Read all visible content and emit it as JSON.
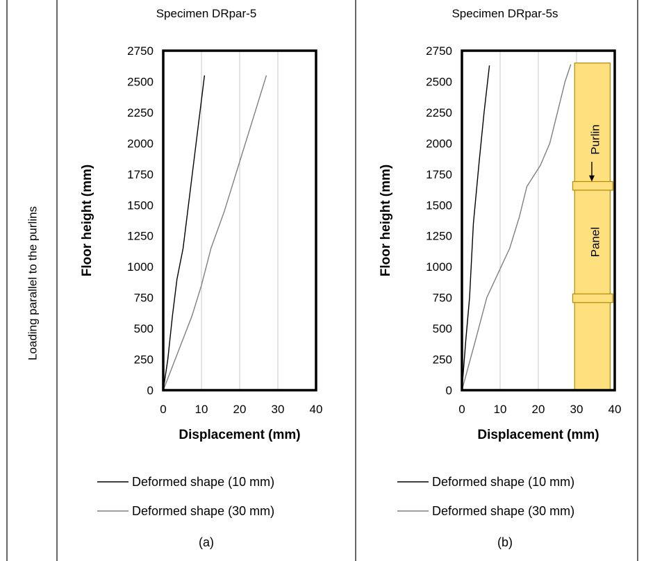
{
  "row_label": "Loading parallel to the purlins",
  "colors": {
    "series_10mm": "#000000",
    "series_30mm": "#7f7f7f",
    "grid": "#c8c8c8",
    "panel_fill": "#ffe07f",
    "panel_stroke": "#b38a00"
  },
  "chart_data": [
    {
      "type": "line",
      "title": "Specimen DRpar-5",
      "sublabel": "(a)",
      "xlabel": "Displacement (mm)",
      "ylabel": "Floor height (mm)",
      "xlim": [
        0,
        40
      ],
      "ylim": [
        0,
        2750
      ],
      "xticks": [
        "0",
        "10",
        "20",
        "30",
        "40"
      ],
      "yticks": [
        "0",
        "250",
        "500",
        "750",
        "1000",
        "1250",
        "1500",
        "1750",
        "2000",
        "2250",
        "2500",
        "2750"
      ],
      "grid": "vertical",
      "legend_position": "bottom",
      "series": [
        {
          "name": "Deformed shape (10 mm)",
          "points": [
            [
              0,
              0
            ],
            [
              1.2,
              250
            ],
            [
              2.4,
              600
            ],
            [
              3.6,
              900
            ],
            [
              5.2,
              1150
            ],
            [
              7.0,
              1600
            ],
            [
              9.0,
              2100
            ],
            [
              10.8,
              2550
            ]
          ]
        },
        {
          "name": "Deformed shape (30 mm)",
          "points": [
            [
              0,
              0
            ],
            [
              2.5,
              200
            ],
            [
              5.0,
              400
            ],
            [
              7.5,
              600
            ],
            [
              10.0,
              850
            ],
            [
              12.5,
              1150
            ],
            [
              16.0,
              1450
            ],
            [
              20.0,
              1850
            ],
            [
              23.5,
              2200
            ],
            [
              27.0,
              2550
            ]
          ]
        }
      ]
    },
    {
      "type": "line",
      "title": "Specimen DRpar-5s",
      "sublabel": "(b)",
      "xlabel": "Displacement (mm)",
      "ylabel": "Floor height (mm)",
      "xlim": [
        0,
        40
      ],
      "ylim": [
        0,
        2750
      ],
      "xticks": [
        "0",
        "10",
        "20",
        "30",
        "40"
      ],
      "yticks": [
        "0",
        "250",
        "500",
        "750",
        "1000",
        "1250",
        "1500",
        "1750",
        "2000",
        "2250",
        "2500",
        "2750"
      ],
      "grid": "vertical",
      "legend_position": "bottom",
      "series": [
        {
          "name": "Deformed shape (10 mm)",
          "points": [
            [
              0,
              0
            ],
            [
              1.0,
              400
            ],
            [
              2.0,
              750
            ],
            [
              3.0,
              1350
            ],
            [
              4.5,
              1850
            ],
            [
              5.8,
              2250
            ],
            [
              7.2,
              2630
            ]
          ]
        },
        {
          "name": "Deformed shape (30 mm)",
          "points": [
            [
              0,
              0
            ],
            [
              3.5,
              400
            ],
            [
              6.5,
              750
            ],
            [
              9.5,
              950
            ],
            [
              12.5,
              1150
            ],
            [
              15.0,
              1400
            ],
            [
              17.0,
              1650
            ],
            [
              20.5,
              1820
            ],
            [
              23.0,
              2000
            ],
            [
              25.0,
              2250
            ],
            [
              27.0,
              2500
            ],
            [
              28.5,
              2640
            ]
          ]
        }
      ],
      "inset": {
        "purlin_label": "Purlin",
        "panel_label": "Panel"
      }
    }
  ]
}
